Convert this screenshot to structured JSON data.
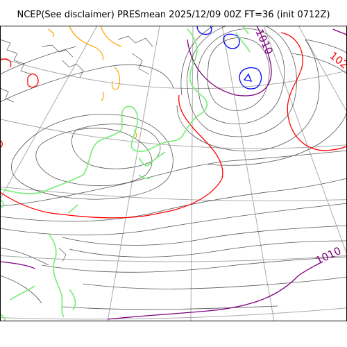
{
  "map": {
    "title": "NCEP(See disclaimer) PRESmean 2025/12/09 00Z FT=36 (init 0712Z)",
    "contour_labels": [
      {
        "text": "1010",
        "color": "#800080"
      },
      {
        "text": "1010",
        "color": "#800080"
      },
      {
        "text": "102",
        "color": "#ff0000"
      }
    ],
    "colors": {
      "isobar": "#555555",
      "isobar_1010": "#800080",
      "isobar_1020": "#ff0000",
      "low_center": "#0000ff",
      "high_contour": "#ffa500",
      "coastline": "#80ee80",
      "graticule": "#aaaaaa",
      "frame": "#000000"
    }
  }
}
